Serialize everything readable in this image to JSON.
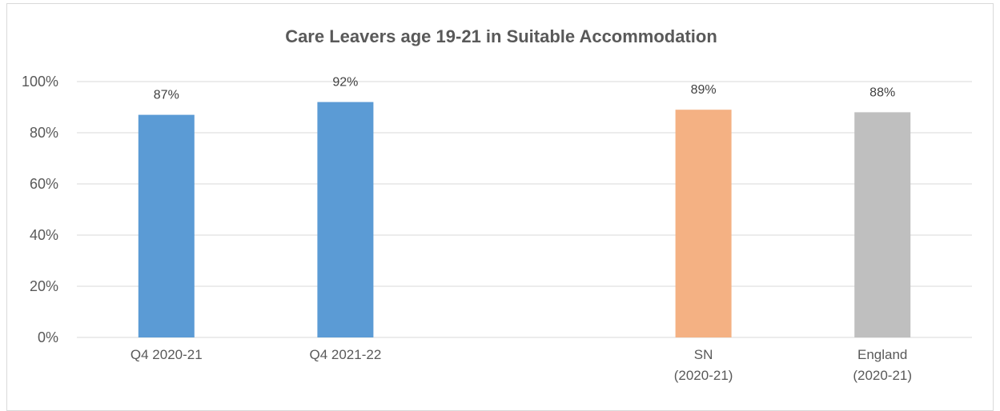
{
  "chart_data": {
    "type": "bar",
    "title": "Care Leavers age 19-21 in Suitable Accommodation",
    "xlabel": "",
    "ylabel": "",
    "ylim": [
      0,
      100
    ],
    "y_ticks": [
      "0%",
      "20%",
      "40%",
      "60%",
      "80%",
      "100%"
    ],
    "y_tick_values": [
      0,
      20,
      40,
      60,
      80,
      100
    ],
    "grid": true,
    "legend": "none",
    "categories": [
      [
        "Q4 2020-21"
      ],
      [
        "Q4  2021-22"
      ],
      [],
      [
        "SN",
        "(2020-21)"
      ],
      [
        "England",
        "(2020-21)"
      ]
    ],
    "values": [
      87,
      92,
      null,
      89,
      88
    ],
    "data_labels": [
      "87%",
      "92%",
      "",
      "89%",
      "88%"
    ],
    "colors": [
      "#5b9bd5",
      "#5b9bd5",
      null,
      "#f4b183",
      "#bfbfbf"
    ]
  }
}
